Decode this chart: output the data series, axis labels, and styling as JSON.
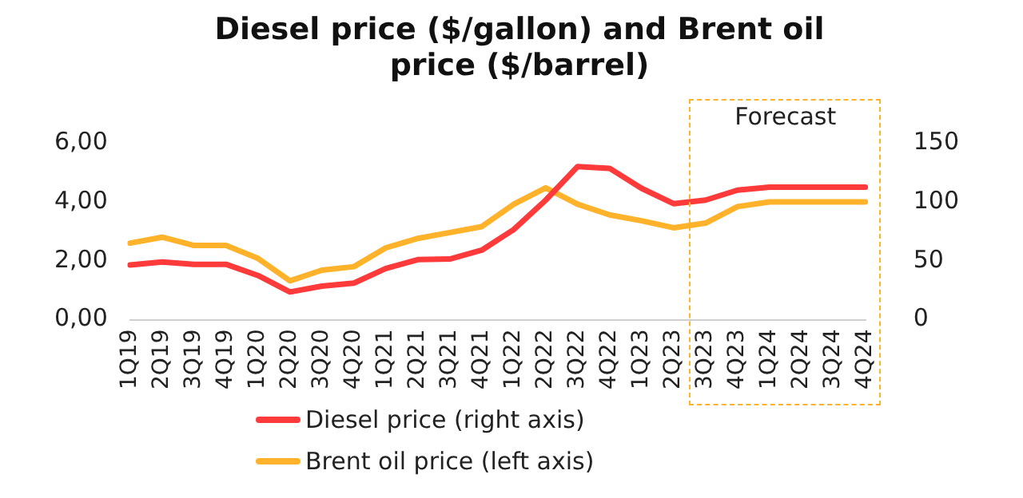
{
  "chart_data": {
    "type": "line",
    "title": "Diesel price ($/gallon) and Brent oil price ($/barrel)",
    "categories": [
      "1Q19",
      "2Q19",
      "3Q19",
      "4Q19",
      "1Q20",
      "2Q20",
      "3Q20",
      "4Q20",
      "1Q21",
      "2Q21",
      "3Q21",
      "4Q21",
      "1Q22",
      "2Q22",
      "3Q22",
      "4Q22",
      "1Q23",
      "2Q23",
      "3Q23",
      "4Q23",
      "1Q24",
      "2Q24",
      "3Q24",
      "4Q24"
    ],
    "series": [
      {
        "name": "Diesel price (right axis)",
        "color": "#ff3a3a",
        "values": [
          1.86,
          1.96,
          1.88,
          1.88,
          1.5,
          0.94,
          1.14,
          1.24,
          1.74,
          2.04,
          2.06,
          2.36,
          3.06,
          4.06,
          5.2,
          5.14,
          4.46,
          3.94,
          4.06,
          4.4,
          4.5,
          4.5,
          4.5,
          4.5
        ]
      },
      {
        "name": "Brent oil price (left axis)",
        "color": "#ffb22a",
        "axis": "y2",
        "values": [
          65,
          70,
          63,
          63,
          52,
          33,
          42,
          45,
          61,
          69,
          74,
          79,
          98,
          112,
          98,
          89,
          84,
          78,
          82,
          96,
          100,
          100,
          100,
          100
        ]
      }
    ],
    "ylim": [
      0,
      6
    ],
    "yticks": [
      {
        "value": 0,
        "label": "0,00"
      },
      {
        "value": 2,
        "label": "2,00"
      },
      {
        "value": 4,
        "label": "4,00"
      },
      {
        "value": 6,
        "label": "6,00"
      }
    ],
    "y2lim": [
      0,
      150
    ],
    "y2ticks": [
      0,
      50,
      100,
      150
    ],
    "annotations": [
      "Forecast"
    ],
    "grid": false,
    "legend": "bottom",
    "marker": "none",
    "line_style": "solid"
  }
}
